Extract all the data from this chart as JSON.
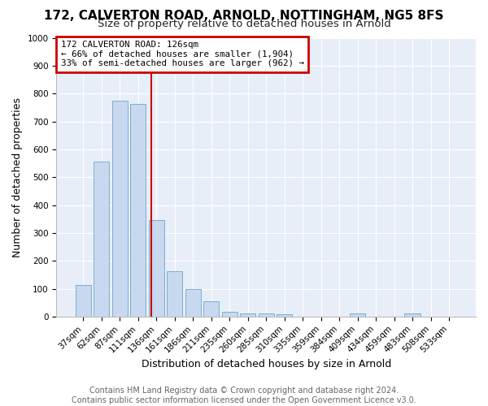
{
  "title": "172, CALVERTON ROAD, ARNOLD, NOTTINGHAM, NG5 8FS",
  "subtitle": "Size of property relative to detached houses in Arnold",
  "xlabel": "Distribution of detached houses by size in Arnold",
  "ylabel": "Number of detached properties",
  "categories": [
    "37sqm",
    "62sqm",
    "87sqm",
    "111sqm",
    "136sqm",
    "161sqm",
    "186sqm",
    "211sqm",
    "235sqm",
    "260sqm",
    "285sqm",
    "310sqm",
    "335sqm",
    "359sqm",
    "384sqm",
    "409sqm",
    "434sqm",
    "459sqm",
    "483sqm",
    "508sqm",
    "533sqm"
  ],
  "values": [
    113,
    555,
    775,
    763,
    345,
    163,
    98,
    55,
    18,
    12,
    12,
    8,
    0,
    0,
    0,
    10,
    0,
    0,
    10,
    0,
    0
  ],
  "bar_color": "#c8d8ee",
  "bar_edge_color": "#7aaed0",
  "ylim": [
    0,
    1000
  ],
  "yticks": [
    0,
    100,
    200,
    300,
    400,
    500,
    600,
    700,
    800,
    900,
    1000
  ],
  "annotation_box_text_line1": "172 CALVERTON ROAD: 126sqm",
  "annotation_box_text_line2": "← 66% of detached houses are smaller (1,904)",
  "annotation_box_text_line3": "33% of semi-detached houses are larger (962) →",
  "annotation_box_color": "#cc0000",
  "red_line_x": 3.72,
  "footer_line1": "Contains HM Land Registry data © Crown copyright and database right 2024.",
  "footer_line2": "Contains public sector information licensed under the Open Government Licence v3.0.",
  "bg_color": "#ffffff",
  "plot_bg_color": "#e8eef8",
  "grid_color": "#ffffff",
  "title_fontsize": 11,
  "subtitle_fontsize": 9.5,
  "axis_label_fontsize": 9,
  "tick_fontsize": 7.5,
  "footer_fontsize": 7
}
